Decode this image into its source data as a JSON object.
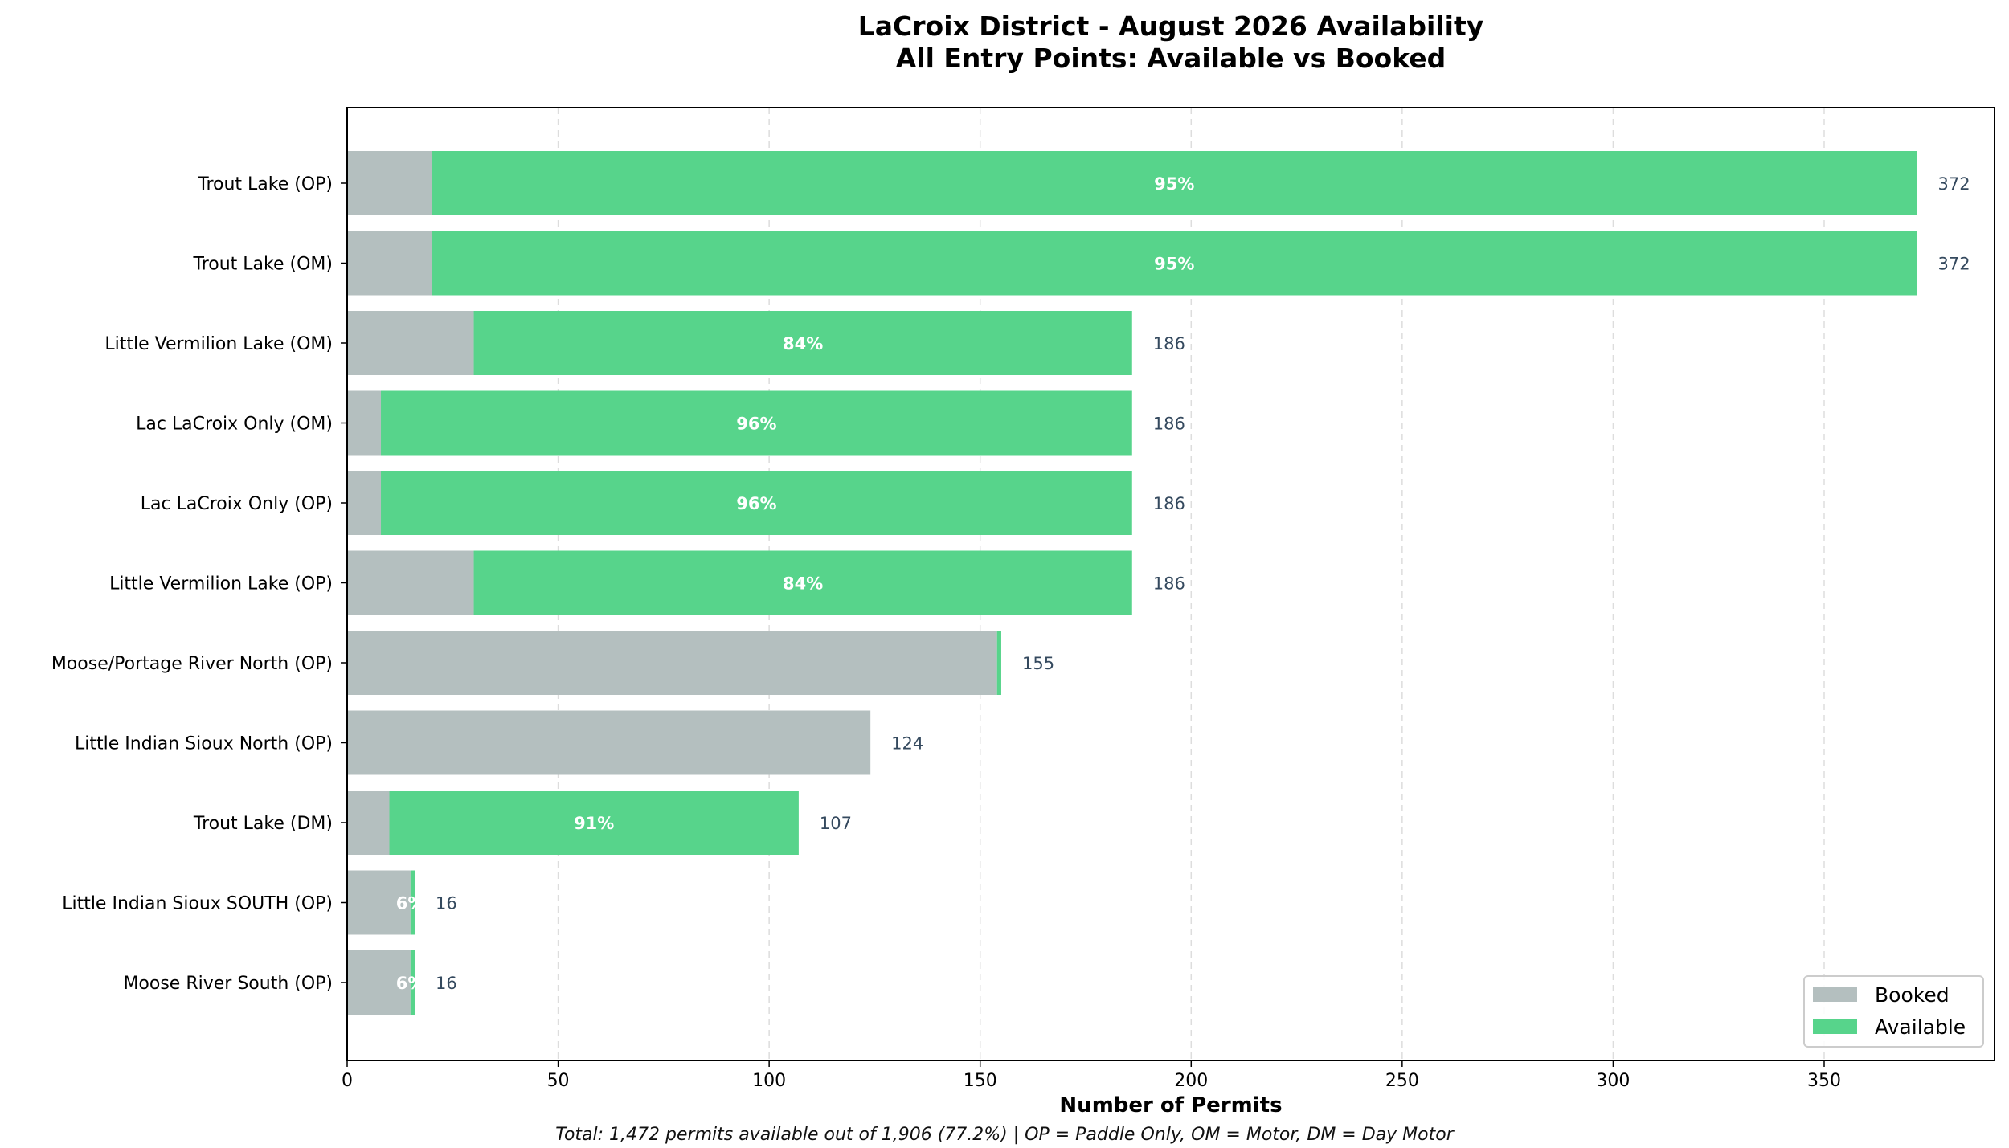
{
  "chart_data": {
    "type": "bar",
    "orientation": "horizontal",
    "stacked": true,
    "title": "LaCroix District - August 2026 Availability",
    "subtitle": "All Entry Points: Available vs Booked",
    "xlabel": "Number of Permits",
    "ylabel": "",
    "xlim": [
      0,
      390
    ],
    "xticks": [
      0,
      50,
      100,
      150,
      200,
      250,
      300,
      350
    ],
    "grid": "x-dashed",
    "legend_placement": "bottom-right",
    "categories": [
      "Trout Lake (OP)",
      "Trout Lake (OM)",
      "Little Vermilion Lake (OM)",
      "Lac LaCroix Only (OM)",
      "Lac LaCroix Only (OP)",
      "Little Vermilion Lake (OP)",
      "Moose/Portage River North (OP)",
      "Little Indian Sioux North (OP)",
      "Trout Lake (DM)",
      "Little Indian Sioux SOUTH (OP)",
      "Moose River South (OP)"
    ],
    "series": [
      {
        "name": "Booked",
        "color": "#b4bfbf",
        "values": [
          20,
          20,
          30,
          8,
          8,
          30,
          154,
          124,
          10,
          15,
          15
        ]
      },
      {
        "name": "Available",
        "color": "#57d48b",
        "values": [
          352,
          352,
          156,
          178,
          178,
          156,
          1,
          0,
          97,
          1,
          1
        ]
      }
    ],
    "totals": [
      "372",
      "372",
      "186",
      "186",
      "186",
      "186",
      "155",
      "124",
      "107",
      "16",
      "16"
    ],
    "pct_labels": [
      "95%",
      "95%",
      "84%",
      "96%",
      "96%",
      "84%",
      "",
      "",
      "91%",
      "6%",
      "6%"
    ],
    "footer": "Total: 1,472 permits available out of 1,906 (77.2%) | OP = Paddle Only, OM = Motor, DM = Day Motor"
  }
}
